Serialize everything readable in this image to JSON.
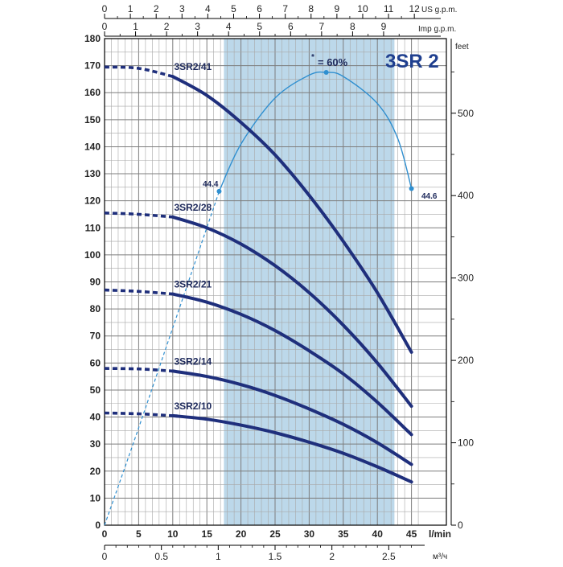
{
  "chart_data": {
    "type": "line",
    "title": "3SR 2",
    "x_unit": "l/min",
    "x_ticks": [
      0,
      5,
      10,
      15,
      20,
      25,
      30,
      35,
      40,
      45
    ],
    "xlim": [
      0,
      46.5
    ],
    "y_left_ticks": [
      0,
      10,
      20,
      30,
      40,
      50,
      60,
      70,
      80,
      90,
      100,
      110,
      120,
      130,
      140,
      150,
      160,
      170,
      180
    ],
    "ylim": [
      0,
      180
    ],
    "y_right_unit": "feet",
    "y_right_ticks": [
      0,
      100,
      200,
      300,
      400,
      500
    ],
    "feet_per_meter": 3.28084,
    "top_us_unit": "US g.p.m.",
    "top_us_ticks": [
      0,
      1,
      2,
      3,
      4,
      5,
      6,
      7,
      8,
      9,
      10,
      11,
      12
    ],
    "top_imp_unit": "Imp g.p.m.",
    "top_imp_ticks": [
      0,
      1,
      2,
      3,
      4,
      5,
      6,
      7,
      8,
      9
    ],
    "bottom_m3_unit": "м³/ч",
    "bottom_m3_ticks": [
      "0",
      "0.5",
      "1",
      "1.5",
      "2",
      "2.5"
    ],
    "recommended_range": [
      17.5,
      42.5
    ],
    "series": [
      {
        "name": "3SR2/41",
        "x": [
          0,
          5,
          10,
          15,
          20,
          25,
          30,
          35,
          40,
          45
        ],
        "y": [
          169.5,
          169,
          166,
          159,
          149,
          137,
          122,
          105,
          86,
          64
        ],
        "solid_from_x": 10
      },
      {
        "name": "3SR2/28",
        "x": [
          0,
          5,
          10,
          15,
          20,
          25,
          30,
          35,
          40,
          45
        ],
        "y": [
          115.5,
          115,
          114,
          110,
          104,
          96,
          86,
          74,
          60,
          44
        ],
        "solid_from_x": 10
      },
      {
        "name": "3SR2/21",
        "x": [
          0,
          5,
          10,
          15,
          20,
          25,
          30,
          35,
          40,
          45
        ],
        "y": [
          87,
          86.5,
          85.5,
          82.5,
          78,
          72,
          64.5,
          56,
          45.5,
          33.5
        ],
        "solid_from_x": 10
      },
      {
        "name": "3SR2/14",
        "x": [
          0,
          5,
          10,
          15,
          20,
          25,
          30,
          35,
          40,
          45
        ],
        "y": [
          58,
          57.8,
          57,
          55,
          52,
          48,
          43,
          37.3,
          30.5,
          22.5
        ],
        "solid_from_x": 10
      },
      {
        "name": "3SR2/10",
        "x": [
          0,
          5,
          10,
          15,
          20,
          25,
          30,
          35,
          40,
          45
        ],
        "y": [
          41.5,
          41.2,
          40.5,
          39.2,
          37,
          34.2,
          30.7,
          26.6,
          21.6,
          16
        ],
        "solid_from_x": 10
      }
    ],
    "efficiency": {
      "peak_label": "= 60%",
      "left_label": "44.4",
      "right_label": "44.6",
      "dashed": [
        [
          0,
          0
        ],
        [
          5,
          36
        ],
        [
          10,
          73
        ],
        [
          16.8,
          123.5
        ]
      ],
      "solid": [
        [
          16.8,
          123.5
        ],
        [
          20,
          141
        ],
        [
          25,
          158
        ],
        [
          30,
          166.5
        ],
        [
          32.5,
          167.5
        ],
        [
          35,
          166
        ],
        [
          40,
          156
        ],
        [
          43,
          143
        ],
        [
          45,
          124.5
        ]
      ],
      "points": [
        [
          16.8,
          123.5
        ],
        [
          32.5,
          167.5
        ],
        [
          45,
          124.5
        ]
      ]
    }
  }
}
